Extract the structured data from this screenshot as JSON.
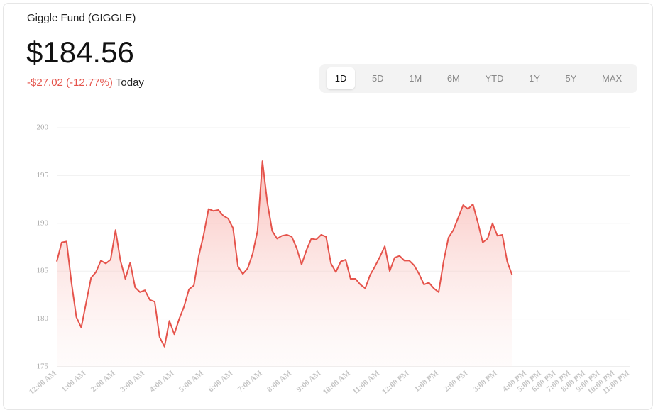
{
  "header": {
    "title": "Giggle Fund (GIGGLE)",
    "price": "$184.56",
    "change": "-$27.02 (-12.77%)",
    "change_label": "Today"
  },
  "ranges": [
    "1D",
    "5D",
    "1M",
    "6M",
    "YTD",
    "1Y",
    "5Y",
    "MAX"
  ],
  "selected_range": 0,
  "chart_data": {
    "type": "line",
    "color": "#e5534b",
    "grid": true,
    "area": true,
    "ylim": [
      175,
      200
    ],
    "yticks": [
      175,
      180,
      185,
      190,
      195,
      200
    ],
    "categories": [
      "12:00 AM",
      null,
      null,
      null,
      null,
      null,
      "1:00 AM",
      null,
      null,
      null,
      null,
      null,
      "2:00 AM",
      null,
      null,
      null,
      null,
      null,
      "3:00 AM",
      null,
      null,
      null,
      null,
      null,
      "4:00 AM",
      null,
      null,
      null,
      null,
      null,
      "5:00 AM",
      null,
      null,
      null,
      null,
      null,
      "6:00 AM",
      null,
      null,
      null,
      null,
      null,
      "7:00 AM",
      null,
      null,
      null,
      null,
      null,
      "8:00 AM",
      null,
      null,
      null,
      null,
      null,
      "9:00 AM",
      null,
      null,
      null,
      null,
      null,
      "10:00 AM",
      null,
      null,
      null,
      null,
      null,
      "11:00 AM",
      null,
      null,
      null,
      null,
      null,
      "12:00 PM",
      null,
      null,
      null,
      null,
      null,
      "1:00 PM",
      null,
      null,
      null,
      null,
      null,
      "2:00 PM",
      null,
      null,
      null,
      null,
      null,
      "3:00 PM",
      null,
      null,
      null,
      null,
      null,
      "4:00 PM",
      null,
      null,
      "5:00 PM",
      null,
      null,
      "6:00 PM",
      null,
      null,
      "7:00 PM",
      null,
      null,
      "8:00 PM",
      null,
      null,
      "9:00 PM",
      null,
      null,
      "10:00 PM",
      null,
      null,
      "11:00 PM"
    ],
    "values": [
      186,
      188,
      188.1,
      183.8,
      180.2,
      179.1,
      181.7,
      184.3,
      184.9,
      186.1,
      185.8,
      186.2,
      189.3,
      186.1,
      184.2,
      185.9,
      183.3,
      182.8,
      183,
      182,
      181.8,
      178.1,
      177.1,
      179.8,
      178.4,
      180,
      181.3,
      183.1,
      183.5,
      186.6,
      188.8,
      191.5,
      191.3,
      191.4,
      190.8,
      190.5,
      189.5,
      185.5,
      184.7,
      185.3,
      186.8,
      189.2,
      196.5,
      192.2,
      189.2,
      188.4,
      188.7,
      188.8,
      188.6,
      187.4,
      185.7,
      187.2,
      188.4,
      188.3,
      188.8,
      188.6,
      185.8,
      184.9,
      186,
      186.2,
      184.2,
      184.2,
      183.6,
      183.2,
      184.6,
      185.5,
      186.5,
      187.6,
      185,
      186.4,
      186.6,
      186.1,
      186.1,
      185.6,
      184.7,
      183.6,
      183.8,
      183.2,
      182.8,
      186,
      188.5,
      189.3,
      190.6,
      191.9,
      191.5,
      192,
      190.1,
      188,
      188.4,
      190,
      188.7,
      188.8,
      186,
      184.6,
      null,
      null,
      null,
      null,
      null,
      null,
      null,
      null,
      null,
      null,
      null,
      null,
      null,
      null,
      null,
      null,
      null,
      null,
      null,
      null,
      null,
      null,
      null,
      null
    ]
  }
}
